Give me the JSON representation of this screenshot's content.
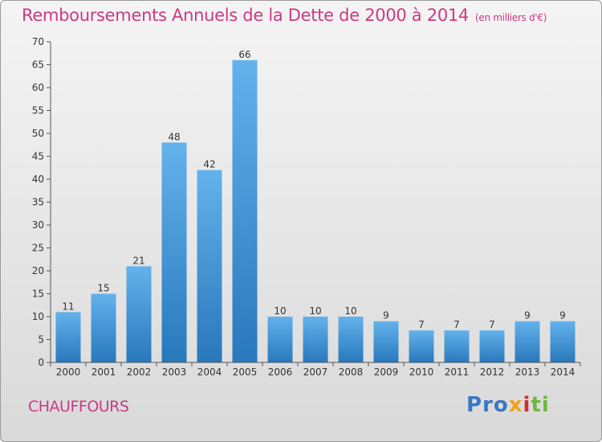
{
  "chart_data": {
    "type": "bar",
    "title": "Remboursements Annuels de la Dette de 2000 à 2014",
    "unit_note": "(en milliers d'€)",
    "categories": [
      "2000",
      "2001",
      "2002",
      "2003",
      "2004",
      "2005",
      "2006",
      "2007",
      "2008",
      "2009",
      "2010",
      "2011",
      "2012",
      "2013",
      "2014"
    ],
    "values": [
      11,
      15,
      21,
      48,
      42,
      66,
      10,
      10,
      10,
      9,
      7,
      7,
      7,
      9,
      9
    ],
    "yticks": [
      0,
      5,
      10,
      15,
      20,
      25,
      30,
      35,
      40,
      45,
      50,
      55,
      60,
      65,
      70
    ],
    "ylim": [
      0,
      70
    ],
    "xlabel": "",
    "ylabel": "",
    "grid": false,
    "bar_color_top": "#64b2ec",
    "bar_color_bottom": "#2878bc"
  },
  "footer": {
    "city": "CHAUFFOURS",
    "logo_parts": [
      "Pro",
      "x",
      "i",
      "ti"
    ]
  },
  "colors": {
    "title": "#cc3a84",
    "axis": "#555555"
  }
}
